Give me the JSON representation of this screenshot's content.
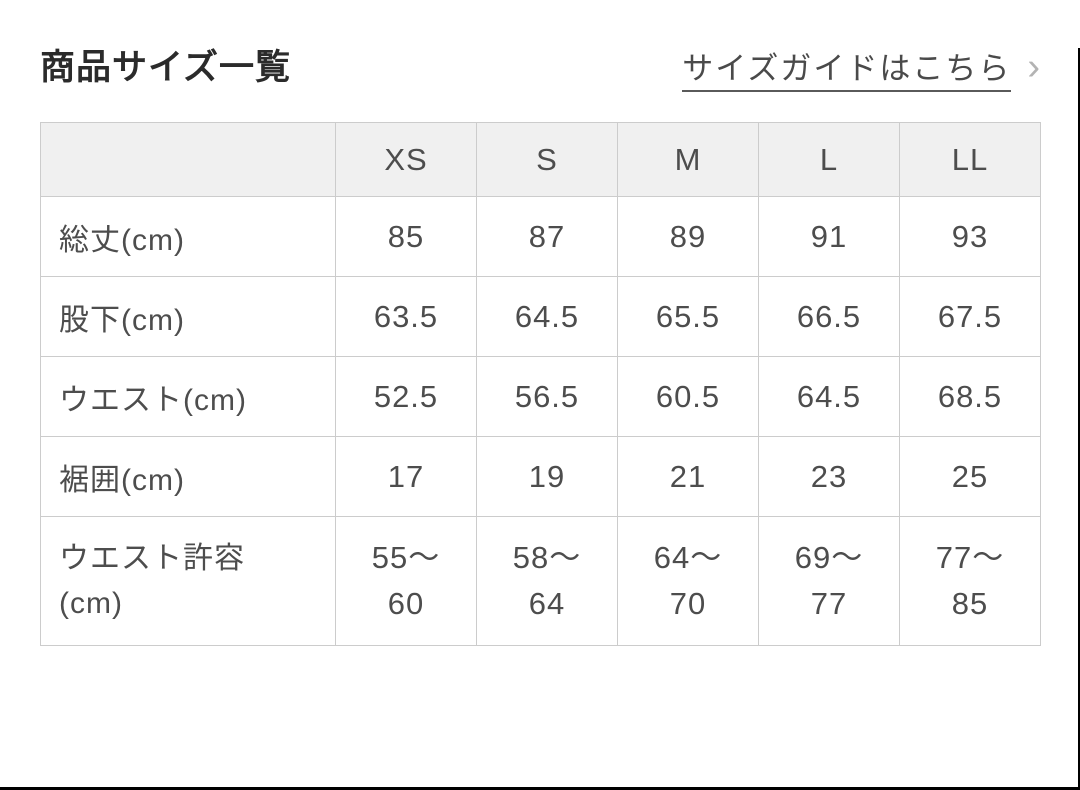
{
  "header": {
    "title": "商品サイズ一覧",
    "size_guide_link_label": "サイズガイドはこちら",
    "chevron_icon": "›"
  },
  "table": {
    "corner_label": "",
    "columns": [
      "XS",
      "S",
      "M",
      "L",
      "LL"
    ],
    "rows": [
      {
        "label": "総丈(cm)",
        "values": [
          "85",
          "87",
          "89",
          "91",
          "93"
        ]
      },
      {
        "label": "股下(cm)",
        "values": [
          "63.5",
          "64.5",
          "65.5",
          "66.5",
          "67.5"
        ]
      },
      {
        "label": "ウエスト(cm)",
        "values": [
          "52.5",
          "56.5",
          "60.5",
          "64.5",
          "68.5"
        ]
      },
      {
        "label": "裾囲(cm)",
        "values": [
          "17",
          "19",
          "21",
          "23",
          "25"
        ]
      },
      {
        "label": "ウエスト許容\n(cm)",
        "values": [
          "55〜\n60",
          "58〜\n64",
          "64〜\n70",
          "69〜\n77",
          "77〜\n85"
        ]
      }
    ]
  },
  "colors": {
    "header_bg": "#f0f0f0",
    "table_border": "#cccccc",
    "cell_text": "#4d4d4d",
    "title_text": "#2b2b2b",
    "link_text": "#4a4a4a",
    "chevron": "#b3b3b3",
    "photo_edge": "#000000"
  }
}
